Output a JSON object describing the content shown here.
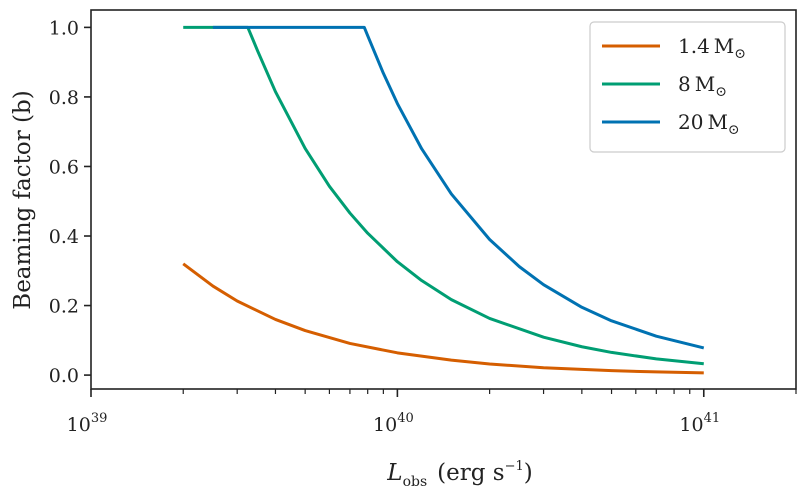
{
  "chart_data": {
    "type": "line",
    "title": "",
    "xlabel": {
      "main": "L",
      "sub": "obs",
      "unit": "(erg s",
      "unit_exp": "−1",
      "unit_close": ")"
    },
    "ylabel": "Beaming factor (b)",
    "xscale": "log",
    "xlim": [
      1e+39,
      2e+41
    ],
    "ylim": [
      -0.04,
      1.05
    ],
    "xticks": [
      {
        "value": 1e+39,
        "base": "10",
        "exp": "39"
      },
      {
        "value": 1e+40,
        "base": "10",
        "exp": "40"
      },
      {
        "value": 1e+41,
        "base": "10",
        "exp": "41"
      }
    ],
    "yticks": [
      {
        "value": 0.0,
        "label": "0.0"
      },
      {
        "value": 0.2,
        "label": "0.2"
      },
      {
        "value": 0.4,
        "label": "0.4"
      },
      {
        "value": 0.6,
        "label": "0.6"
      },
      {
        "value": 0.8,
        "label": "0.8"
      },
      {
        "value": 1.0,
        "label": "1.0"
      }
    ],
    "grid": false,
    "legend_position": "top-right",
    "series": [
      {
        "name": "1.4 M⊙",
        "legend_num": "1.4",
        "color": "#d55e00",
        "x": [
          2e+39,
          2.5e+39,
          3e+39,
          4e+39,
          5e+39,
          7e+39,
          1e+40,
          1.5e+40,
          2e+40,
          3e+40,
          5e+40,
          7e+40,
          1e+41
        ],
        "y": [
          0.32,
          0.256,
          0.213,
          0.16,
          0.128,
          0.091,
          0.064,
          0.043,
          0.032,
          0.021,
          0.0128,
          0.0091,
          0.0064
        ]
      },
      {
        "name": "8 M⊙",
        "legend_num": "8",
        "color": "#009e73",
        "x": [
          2e+39,
          2.5e+39,
          3e+39,
          3.25e+39,
          3.5e+39,
          4e+39,
          5e+39,
          6e+39,
          7e+39,
          8e+39,
          1e+40,
          1.2e+40,
          1.5e+40,
          2e+40,
          3e+40,
          4e+40,
          5e+40,
          7e+40,
          1e+41
        ],
        "y": [
          1.0,
          1.0,
          1.0,
          1.0,
          0.932,
          0.815,
          0.652,
          0.543,
          0.466,
          0.408,
          0.326,
          0.272,
          0.217,
          0.163,
          0.109,
          0.0815,
          0.0652,
          0.0466,
          0.0326
        ]
      },
      {
        "name": "20 M⊙",
        "legend_num": "20",
        "color": "#0072b2",
        "x": [
          2.5e+39,
          4e+39,
          6e+39,
          7.8e+39,
          8e+39,
          9e+39,
          1e+40,
          1.2e+40,
          1.5e+40,
          2e+40,
          2.5e+40,
          3e+40,
          4e+40,
          5e+40,
          7e+40,
          1e+41
        ],
        "y": [
          1.0,
          1.0,
          1.0,
          1.0,
          0.976,
          0.868,
          0.781,
          0.651,
          0.521,
          0.39,
          0.312,
          0.26,
          0.195,
          0.156,
          0.112,
          0.078
        ]
      }
    ],
    "legend_unit": "M",
    "legend_sub": "⊙"
  }
}
